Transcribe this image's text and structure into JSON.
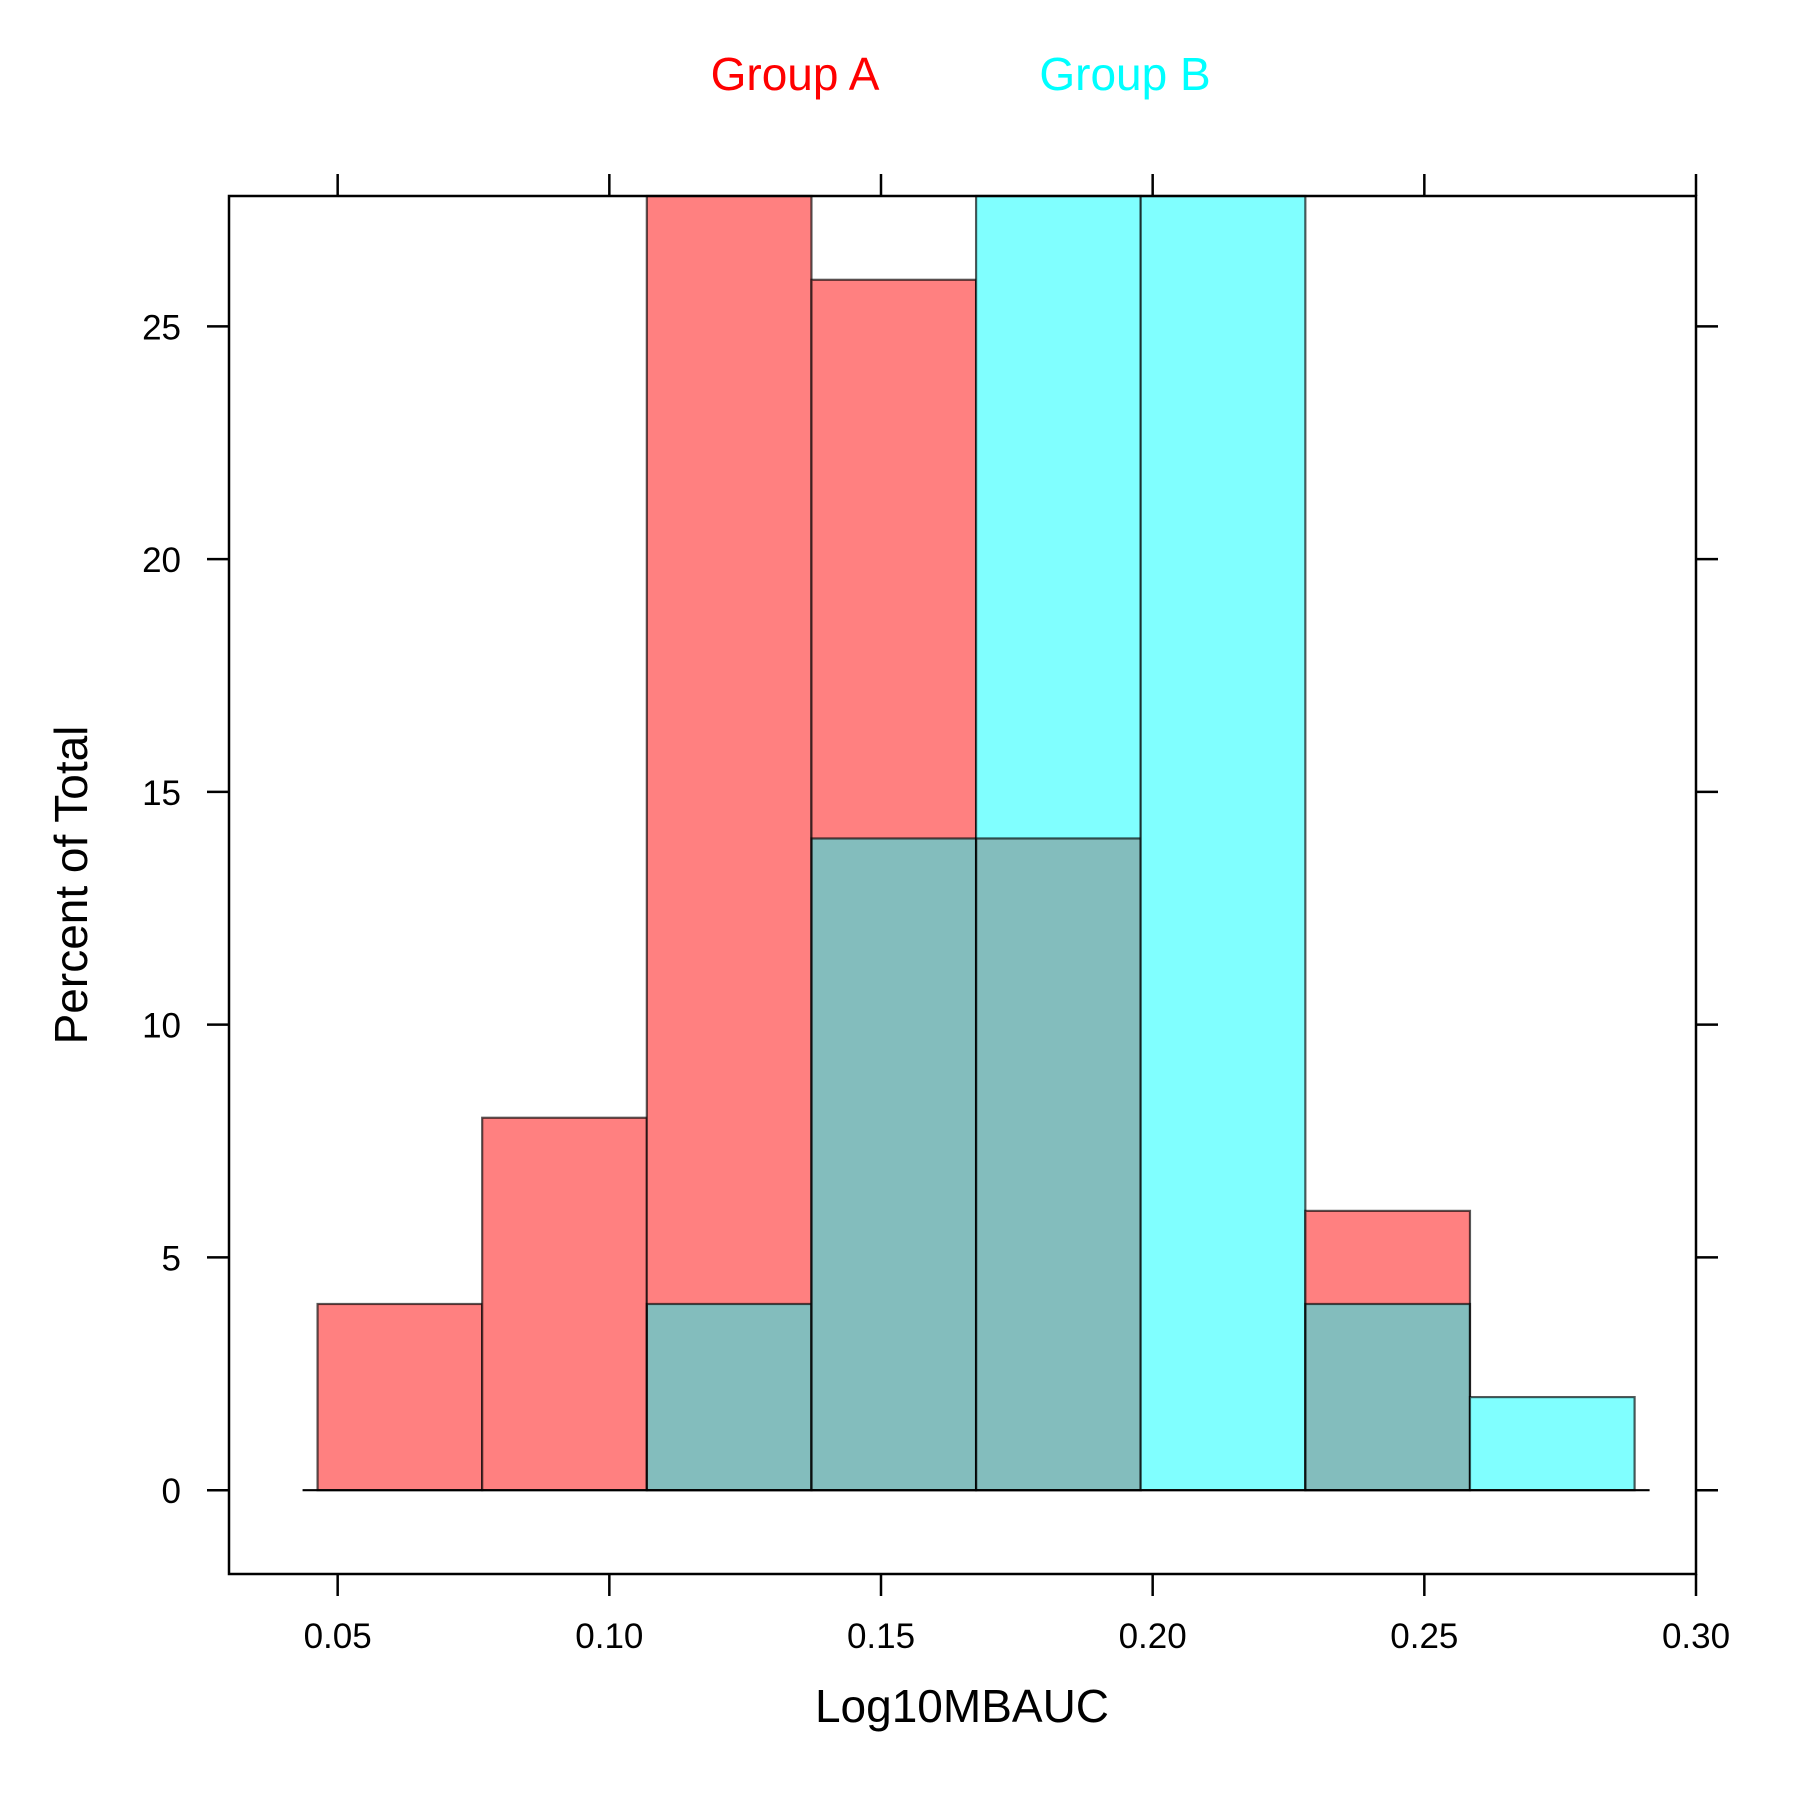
{
  "chart_data": {
    "type": "bar",
    "title": "",
    "xlabel": "Log10MBAUC",
    "ylabel": "Percent of Total",
    "xlim": [
      0.03,
      0.3
    ],
    "ylim": [
      -1.8,
      27.8
    ],
    "xticks": [
      0.05,
      0.1,
      0.15,
      0.2,
      0.25,
      0.3
    ],
    "xtick_labels": [
      "0.05",
      "0.10",
      "0.15",
      "0.20",
      "0.25",
      "0.30"
    ],
    "yticks": [
      0,
      5,
      10,
      15,
      20,
      25
    ],
    "ytick_labels": [
      "0",
      "5",
      "10",
      "15",
      "20",
      "25"
    ],
    "grid": false,
    "legend_position": "top",
    "bin_edges": [
      0.0463,
      0.0766,
      0.1069,
      0.1372,
      0.1675,
      0.1978,
      0.2281,
      0.2584,
      0.2887
    ],
    "series": [
      {
        "name": "Group A",
        "color": "#ff0000",
        "fill": "#ff8080",
        "values": [
          4,
          8,
          30,
          26,
          14,
          0,
          6,
          0
        ]
      },
      {
        "name": "Group B",
        "color": "#00ffff",
        "fill": "#80ffff",
        "values": [
          0,
          0,
          4,
          14,
          30,
          30,
          4,
          2
        ]
      }
    ],
    "overlap_fill": "#83bdbd"
  }
}
